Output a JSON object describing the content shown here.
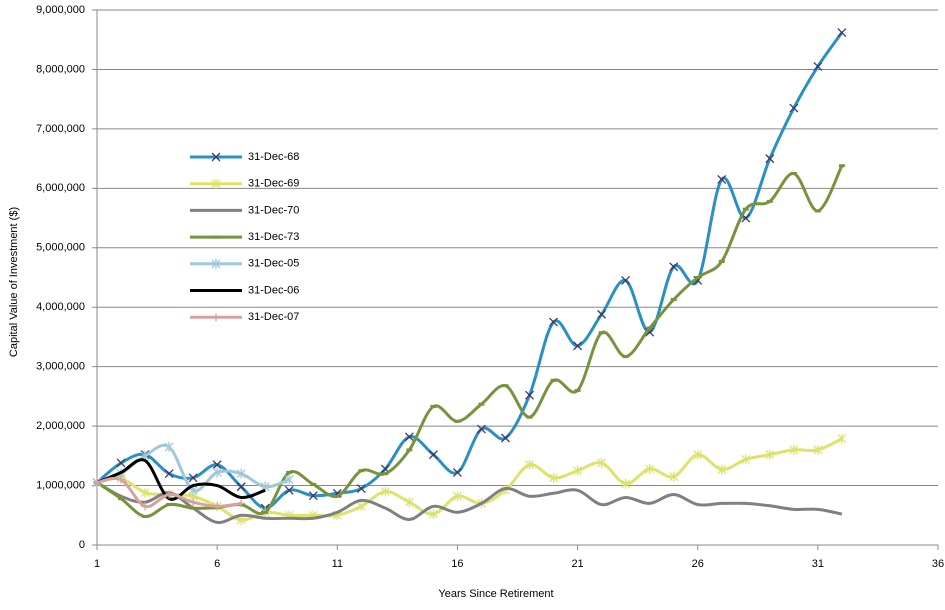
{
  "chart_data": {
    "type": "line",
    "x_label": "Years Since Retirement",
    "y_label": "Capital Value of Investment ($)",
    "x": [
      1,
      2,
      3,
      4,
      5,
      6,
      7,
      8,
      9,
      10,
      11,
      12,
      13,
      14,
      15,
      16,
      17,
      18,
      19,
      20,
      21,
      22,
      23,
      24,
      25,
      26,
      27,
      28,
      29,
      30,
      31,
      32
    ],
    "xlim": [
      1,
      36
    ],
    "xticks": [
      1,
      6,
      11,
      16,
      21,
      26,
      31,
      36
    ],
    "ylim": [
      0,
      9000000
    ],
    "yticks": [
      0,
      {
        "value": 1000000,
        "label": "1,000,000"
      },
      {
        "value": 2000000,
        "label": "2,000,000"
      },
      {
        "value": 3000000,
        "label": "3,000,000"
      },
      {
        "value": 4000000,
        "label": "4,000,000"
      },
      {
        "value": 5000000,
        "label": "5,000,000"
      },
      {
        "value": 6000000,
        "label": "6,000,000"
      },
      {
        "value": 7000000,
        "label": "7,000,000"
      },
      {
        "value": 8000000,
        "label": "8,000,000"
      },
      {
        "value": 9000000,
        "label": "9,000,000"
      }
    ],
    "grid": true,
    "legend": "left",
    "series": [
      {
        "name": "31-Dec-68",
        "color": "#2a90c4",
        "marker": "x",
        "values": [
          1050000,
          1380000,
          1520000,
          1200000,
          1130000,
          1350000,
          980000,
          620000,
          920000,
          830000,
          870000,
          950000,
          1280000,
          1820000,
          1520000,
          1220000,
          1950000,
          1800000,
          2520000,
          3750000,
          3350000,
          3880000,
          4450000,
          3580000,
          4680000,
          4450000,
          6150000,
          5500000,
          6500000,
          7350000,
          8050000,
          8620000
        ]
      },
      {
        "name": "31-Dec-69",
        "color": "#dde36a",
        "marker": "star",
        "values": [
          1050000,
          1120000,
          880000,
          850000,
          820000,
          650000,
          420000,
          550000,
          500000,
          500000,
          500000,
          650000,
          900000,
          720000,
          520000,
          820000,
          700000,
          920000,
          1350000,
          1130000,
          1250000,
          1380000,
          1030000,
          1280000,
          1150000,
          1520000,
          1270000,
          1440000,
          1520000,
          1600000,
          1600000,
          1790000
        ]
      },
      {
        "name": "31-Dec-70",
        "color": "#808080",
        "marker": "none",
        "values": [
          1050000,
          820000,
          720000,
          880000,
          620000,
          380000,
          500000,
          450000,
          450000,
          450000,
          550000,
          750000,
          620000,
          430000,
          650000,
          550000,
          700000,
          950000,
          820000,
          870000,
          920000,
          680000,
          800000,
          700000,
          850000,
          680000,
          700000,
          700000,
          660000,
          600000,
          600000,
          520000
        ]
      },
      {
        "name": "31-Dec-73",
        "color": "#77933c",
        "marker": "dash",
        "values": [
          1050000,
          780000,
          480000,
          680000,
          620000,
          630000,
          680000,
          550000,
          1220000,
          1020000,
          820000,
          1250000,
          1200000,
          1600000,
          2330000,
          2080000,
          2370000,
          2680000,
          2150000,
          2770000,
          2600000,
          3570000,
          3170000,
          3650000,
          4130000,
          4500000,
          4770000,
          5650000,
          5780000,
          6250000,
          5620000,
          6380000
        ]
      },
      {
        "name": "31-Dec-05",
        "color": "#9fc9db",
        "marker": "star",
        "values": [
          1050000,
          1200000,
          1500000,
          1650000,
          920000,
          1220000,
          1200000,
          980000,
          1100000,
          null,
          null,
          null,
          null,
          null,
          null,
          null,
          null,
          null,
          null,
          null,
          null,
          null,
          null,
          null,
          null,
          null,
          null,
          null,
          null,
          null,
          null,
          null
        ]
      },
      {
        "name": "31-Dec-06",
        "color": "#000000",
        "marker": "none",
        "values": [
          1050000,
          1220000,
          1420000,
          780000,
          1000000,
          1000000,
          800000,
          920000,
          null,
          null,
          null,
          null,
          null,
          null,
          null,
          null,
          null,
          null,
          null,
          null,
          null,
          null,
          null,
          null,
          null,
          null,
          null,
          null,
          null,
          null,
          null,
          null
        ]
      },
      {
        "name": "31-Dec-07",
        "color": "#d9a0a0",
        "marker": "plus",
        "values": [
          1050000,
          1100000,
          650000,
          850000,
          720000,
          650000,
          700000,
          null,
          null,
          null,
          null,
          null,
          null,
          null,
          null,
          null,
          null,
          null,
          null,
          null,
          null,
          null,
          null,
          null,
          null,
          null,
          null,
          null,
          null,
          null,
          null,
          null
        ]
      }
    ]
  }
}
